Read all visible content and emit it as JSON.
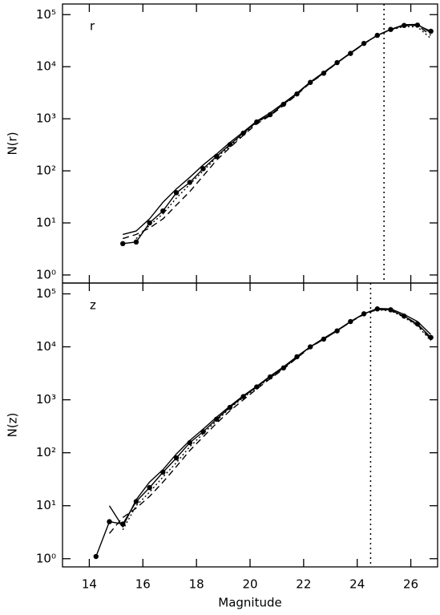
{
  "chart_data": [
    {
      "type": "line",
      "label": "r",
      "ylabel": "N(r)",
      "log": true,
      "vline": 25,
      "xlim": [
        13,
        27
      ],
      "xticks": [
        14,
        16,
        18,
        20,
        22,
        24,
        26
      ],
      "ylim": [
        0.7,
        160000
      ],
      "yticks": [
        {
          "value": 1,
          "label": "10⁰"
        },
        {
          "value": 10,
          "label": "10¹"
        },
        {
          "value": 100,
          "label": "10²"
        },
        {
          "value": 1000,
          "label": "10³"
        },
        {
          "value": 10000,
          "label": "10⁴"
        },
        {
          "value": 100000,
          "label": "10⁵"
        }
      ],
      "x": [
        15.25,
        15.75,
        16.25,
        16.75,
        17.25,
        17.75,
        18.25,
        18.75,
        19.25,
        19.75,
        20.25,
        20.75,
        21.25,
        21.75,
        22.25,
        22.75,
        23.25,
        23.75,
        24.25,
        24.75,
        25.25,
        25.75,
        26.25,
        26.75
      ],
      "series": [
        {
          "color": "#000000",
          "style": "solid",
          "markers": true,
          "values": [
            4,
            4.3,
            10,
            17,
            38,
            60,
            110,
            190,
            320,
            530,
            870,
            1200,
            1900,
            3000,
            5000,
            7500,
            12000,
            18000,
            28000,
            40000,
            52000,
            62000,
            63000,
            48000
          ]
        },
        {
          "color": "#000000",
          "style": "solid",
          "markers": false,
          "values": [
            6,
            7,
            12,
            25,
            45,
            75,
            130,
            210,
            350,
            560,
            900,
            1300,
            2000,
            3100,
            5100,
            7800,
            12000,
            18500,
            28000,
            40000,
            52000,
            64000,
            65000,
            45000
          ]
        },
        {
          "color": "#000000",
          "style": "dashed",
          "markers": false,
          "values": [
            5,
            6,
            8,
            12,
            22,
            40,
            80,
            160,
            280,
            480,
            800,
            1150,
            1800,
            2900,
            4900,
            7400,
            11800,
            18000,
            27500,
            40000,
            52000,
            61000,
            62000,
            40000
          ]
        },
        {
          "color": "#000000",
          "style": "dotted",
          "markers": false,
          "values": [
            null,
            5,
            9,
            15,
            30,
            55,
            100,
            180,
            300,
            500,
            850,
            1200,
            1900,
            3000,
            5000,
            7600,
            12000,
            18000,
            28000,
            40000,
            51000,
            59000,
            58000,
            35000
          ]
        }
      ]
    },
    {
      "type": "line",
      "label": "z",
      "ylabel": "N(z)",
      "xlabel": "Magnitude",
      "log": true,
      "vline": 24.5,
      "xlim": [
        13,
        27
      ],
      "xticks": [
        14,
        16,
        18,
        20,
        22,
        24,
        26
      ],
      "ylim": [
        0.7,
        160000
      ],
      "yticks": [
        {
          "value": 1,
          "label": "10⁰"
        },
        {
          "value": 10,
          "label": "10¹"
        },
        {
          "value": 100,
          "label": "10²"
        },
        {
          "value": 1000,
          "label": "10³"
        },
        {
          "value": 10000,
          "label": "10⁴"
        },
        {
          "value": 100000,
          "label": "10⁵"
        }
      ],
      "x": [
        14.25,
        14.75,
        15.25,
        15.75,
        16.25,
        16.75,
        17.25,
        17.75,
        18.25,
        18.75,
        19.25,
        19.75,
        20.25,
        20.75,
        21.25,
        21.75,
        22.25,
        22.75,
        23.25,
        23.75,
        24.25,
        24.75,
        25.25,
        25.75,
        26.25,
        26.75
      ],
      "series": [
        {
          "color": "#000000",
          "style": "solid",
          "markers": true,
          "values": [
            1.1,
            5,
            4.5,
            12,
            22,
            43,
            80,
            155,
            250,
            430,
            720,
            1150,
            1750,
            2700,
            4000,
            6500,
            10000,
            14000,
            20000,
            30000,
            42000,
            52000,
            50000,
            38000,
            27000,
            15000
          ]
        },
        {
          "color": "#000000",
          "style": "solid",
          "markers": false,
          "values": [
            null,
            10,
            4,
            13,
            28,
            48,
            95,
            170,
            280,
            470,
            760,
            1200,
            1800,
            2800,
            4200,
            6600,
            10000,
            14500,
            20500,
            30000,
            42000,
            53000,
            52000,
            41000,
            30000,
            17000
          ]
        },
        {
          "color": "#000000",
          "style": "dashed",
          "markers": false,
          "values": [
            null,
            3,
            6,
            9,
            15,
            28,
            55,
            110,
            200,
            360,
            620,
            1000,
            1600,
            2500,
            3800,
            6200,
            9700,
            14000,
            20000,
            29500,
            41000,
            51000,
            49000,
            37000,
            26000,
            14000
          ]
        },
        {
          "color": "#000000",
          "style": "dotted",
          "markers": false,
          "values": [
            null,
            null,
            3.5,
            10,
            18,
            35,
            65,
            130,
            230,
            400,
            700,
            1100,
            1700,
            2600,
            3900,
            6400,
            9900,
            14000,
            20000,
            30000,
            42000,
            50000,
            48000,
            36000,
            25000,
            13000
          ]
        }
      ]
    }
  ]
}
